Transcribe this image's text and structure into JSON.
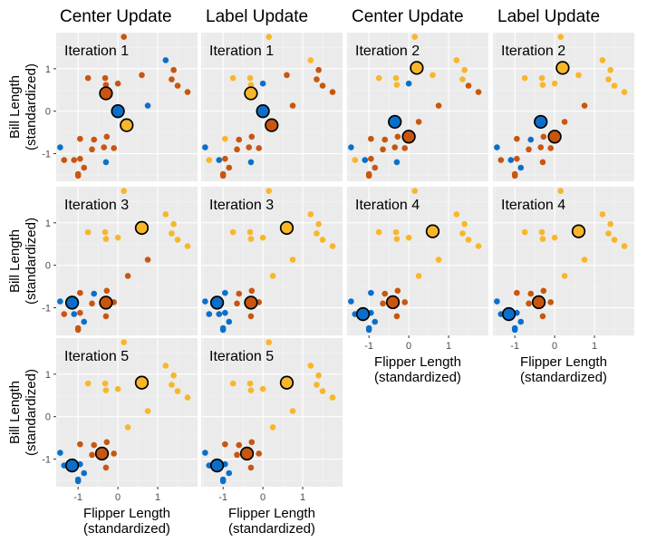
{
  "colors": {
    "panel_bg": "#ebebeb",
    "grid_major": "#ffffff",
    "grid_minor": "#f5f5f5",
    "tick": "#333333",
    "cluster_1": "#0a6fca",
    "cluster_2": "#f8b62a",
    "cluster_3": "#c8560f",
    "center_outline": "#000000"
  },
  "column_titles": [
    "Center Update",
    "Label Update",
    "Center Update",
    "Label Update"
  ],
  "x_axis_title": [
    "Flipper Length",
    "(standardized)"
  ],
  "y_axis_title": [
    "Bill Length",
    "(standardized)"
  ],
  "chart_data": {
    "type": "scatter",
    "layout": "facet grid, 3 rows x 4 columns, shared axes",
    "xlabel": "Flipper Length (standardized)",
    "ylabel": "Bill Length (standardized)",
    "xlim": [
      -1.55,
      2.0
    ],
    "ylim": [
      -1.65,
      1.85
    ],
    "x_ticks": [
      -1,
      0,
      1
    ],
    "x_tick_labels": [
      "-1",
      "0",
      "1"
    ],
    "y_ticks": [
      -1,
      0,
      1
    ],
    "y_tick_labels": [
      "-1",
      "0",
      "1"
    ],
    "grid": true,
    "points": [
      [
        -0.75,
        0.78
      ],
      [
        -0.32,
        0.78
      ],
      [
        -0.3,
        0.62
      ],
      [
        0.0,
        0.65
      ],
      [
        0.15,
        1.75
      ],
      [
        1.2,
        1.2
      ],
      [
        1.4,
        0.97
      ],
      [
        1.35,
        0.75
      ],
      [
        1.5,
        0.6
      ],
      [
        1.75,
        0.45
      ],
      [
        0.6,
        0.85
      ],
      [
        0.75,
        0.13
      ],
      [
        -0.95,
        -0.65
      ],
      [
        -0.95,
        -1.12
      ],
      [
        -1.0,
        -1.48
      ],
      [
        -0.65,
        -0.9
      ],
      [
        -0.3,
        -1.2
      ],
      [
        -0.28,
        -0.6
      ],
      [
        -0.1,
        -0.87
      ],
      [
        0.25,
        -0.25
      ],
      [
        -1.45,
        -0.85
      ],
      [
        -1.35,
        -1.15
      ],
      [
        -1.1,
        -1.15
      ],
      [
        -0.85,
        -1.33
      ],
      [
        -1.0,
        -1.52
      ],
      [
        -0.6,
        -0.67
      ],
      [
        -0.35,
        -0.85
      ]
    ],
    "panels": [
      {
        "row": 0,
        "col": 0,
        "label": "Iteration 1",
        "point_colors": [
          2,
          2,
          2,
          2,
          2,
          0,
          2,
          2,
          2,
          2,
          2,
          0,
          2,
          2,
          2,
          2,
          0,
          2,
          2,
          2,
          0,
          2,
          2,
          2,
          2,
          2,
          2
        ],
        "centers": [
          [
            -0.3,
            0.42,
            2
          ],
          [
            0.0,
            0.0,
            0
          ],
          [
            0.22,
            -0.33,
            1
          ]
        ]
      },
      {
        "row": 0,
        "col": 1,
        "label": "Iteration 1",
        "point_colors": [
          1,
          1,
          1,
          0,
          1,
          1,
          2,
          2,
          2,
          2,
          2,
          2,
          1,
          2,
          2,
          2,
          0,
          2,
          2,
          2,
          0,
          1,
          0,
          2,
          2,
          2,
          2
        ],
        "centers": [
          [
            -0.3,
            0.42,
            1
          ],
          [
            0.0,
            0.0,
            0
          ],
          [
            0.22,
            -0.33,
            2
          ]
        ]
      },
      {
        "row": 0,
        "col": 2,
        "label": "Iteration 2",
        "point_colors": [
          1,
          1,
          1,
          0,
          1,
          1,
          1,
          1,
          2,
          2,
          1,
          2,
          2,
          2,
          2,
          2,
          0,
          2,
          2,
          2,
          0,
          1,
          0,
          2,
          2,
          2,
          2
        ],
        "centers": [
          [
            0.2,
            1.02,
            1
          ],
          [
            -0.35,
            -0.25,
            0
          ],
          [
            0.0,
            -0.6,
            2
          ]
        ]
      },
      {
        "row": 0,
        "col": 3,
        "label": "Iteration 2",
        "point_colors": [
          1,
          1,
          1,
          1,
          1,
          1,
          1,
          1,
          1,
          1,
          1,
          2,
          2,
          2,
          2,
          2,
          2,
          2,
          2,
          2,
          0,
          2,
          0,
          0,
          2,
          0,
          2
        ],
        "centers": [
          [
            0.2,
            1.02,
            1
          ],
          [
            -0.35,
            -0.25,
            0
          ],
          [
            0.0,
            -0.6,
            2
          ]
        ]
      },
      {
        "row": 1,
        "col": 0,
        "label": "Iteration 3",
        "point_colors": [
          1,
          1,
          1,
          1,
          1,
          1,
          1,
          1,
          1,
          1,
          1,
          2,
          2,
          2,
          2,
          2,
          2,
          2,
          2,
          2,
          0,
          2,
          0,
          0,
          2,
          0,
          2
        ],
        "centers": [
          [
            0.6,
            0.88,
            1
          ],
          [
            -1.15,
            -0.88,
            0
          ],
          [
            -0.3,
            -0.88,
            2
          ]
        ]
      },
      {
        "row": 1,
        "col": 1,
        "label": "Iteration 3",
        "point_colors": [
          1,
          1,
          1,
          1,
          1,
          1,
          1,
          1,
          1,
          1,
          1,
          1,
          0,
          0,
          0,
          2,
          2,
          2,
          2,
          1,
          0,
          0,
          0,
          0,
          0,
          2,
          2
        ],
        "centers": [
          [
            0.6,
            0.88,
            1
          ],
          [
            -1.15,
            -0.88,
            0
          ],
          [
            -0.3,
            -0.88,
            2
          ]
        ]
      },
      {
        "row": 1,
        "col": 2,
        "label": "Iteration 4",
        "point_colors": [
          1,
          1,
          1,
          1,
          1,
          1,
          1,
          1,
          1,
          1,
          1,
          1,
          0,
          0,
          0,
          2,
          2,
          2,
          2,
          1,
          0,
          0,
          0,
          0,
          0,
          2,
          2
        ],
        "centers": [
          [
            0.6,
            0.8,
            1
          ],
          [
            -1.15,
            -1.15,
            0
          ],
          [
            -0.4,
            -0.87,
            2
          ]
        ]
      },
      {
        "row": 1,
        "col": 3,
        "label": "Iteration 4",
        "point_colors": [
          1,
          1,
          1,
          1,
          1,
          1,
          1,
          1,
          1,
          1,
          1,
          1,
          2,
          0,
          0,
          2,
          2,
          2,
          2,
          1,
          0,
          0,
          0,
          0,
          0,
          2,
          2
        ],
        "centers": [
          [
            0.6,
            0.8,
            1
          ],
          [
            -1.15,
            -1.15,
            0
          ],
          [
            -0.4,
            -0.87,
            2
          ]
        ]
      },
      {
        "row": 2,
        "col": 0,
        "label": "Iteration 5",
        "point_colors": [
          1,
          1,
          1,
          1,
          1,
          1,
          1,
          1,
          1,
          1,
          1,
          1,
          2,
          0,
          0,
          2,
          2,
          2,
          2,
          1,
          0,
          0,
          0,
          0,
          0,
          2,
          2
        ],
        "centers": [
          [
            0.6,
            0.8,
            1
          ],
          [
            -1.15,
            -1.15,
            0
          ],
          [
            -0.4,
            -0.87,
            2
          ]
        ]
      },
      {
        "row": 2,
        "col": 1,
        "label": "Iteration 5",
        "point_colors": [
          1,
          1,
          1,
          1,
          1,
          1,
          1,
          1,
          1,
          1,
          1,
          1,
          2,
          0,
          0,
          2,
          2,
          2,
          2,
          1,
          0,
          0,
          0,
          0,
          0,
          2,
          2
        ],
        "centers": [
          [
            0.6,
            0.8,
            1
          ],
          [
            -1.15,
            -1.15,
            0
          ],
          [
            -0.4,
            -0.87,
            2
          ]
        ]
      }
    ]
  }
}
